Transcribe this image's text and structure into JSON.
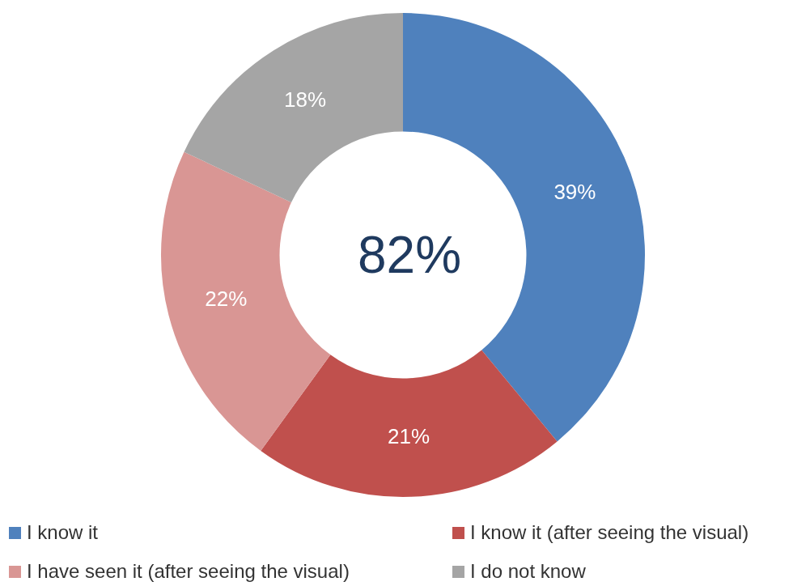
{
  "chart_data": {
    "type": "donut",
    "categories": [
      "I know it",
      "I know it (after seeing the visual)",
      "I have seen it (after seeing the visual)",
      "I do not know"
    ],
    "values": [
      39,
      21,
      22,
      18
    ],
    "colors": [
      "#4f81bd",
      "#c0504d",
      "#d99694",
      "#a5a5a5"
    ],
    "value_labels": [
      "39%",
      "21%",
      "22%",
      "18%"
    ],
    "annotations": [
      "82%"
    ],
    "legend": "bottom"
  }
}
